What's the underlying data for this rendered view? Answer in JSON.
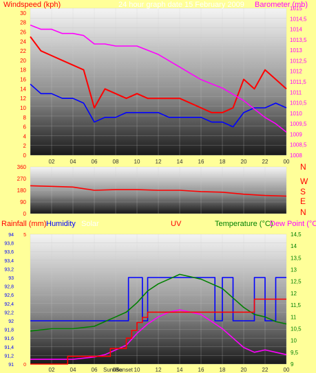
{
  "header": {
    "left_title": "Windspeed (kph)",
    "center_title": "24 hour graph  date  15 February 2009",
    "right_title": "Barometer (mb)"
  },
  "bottom_header": {
    "rainfall": "Rainfall (mm)",
    "humidity": "Humidity",
    "solar": "Solar",
    "uv": "UV",
    "temperature": "Temperature (°C)",
    "dewpoint": "Dew Point (°C)"
  },
  "colors": {
    "background": "#ffff99",
    "wind_avg": "#0000ff",
    "wind_gust": "#ff0000",
    "barometer": "#ff00ff",
    "winddir": "#ff0000",
    "humidity": "#0000ff",
    "temperature": "#008000",
    "dewpoint": "#ff00ff",
    "rainfall": "#ff0000",
    "solar": "#ffff00",
    "uv": "#008000"
  },
  "chart_data": [
    {
      "type": "line",
      "name": "wind-barometer",
      "x_ticks": [
        "02",
        "04",
        "06",
        "08",
        "10",
        "12",
        "14",
        "16",
        "18",
        "20",
        "22",
        "00"
      ],
      "y_left_ticks": [
        "0",
        "2",
        "4",
        "6",
        "8",
        "10",
        "12",
        "14",
        "16",
        "18",
        "20",
        "22",
        "24",
        "26",
        "28",
        "30"
      ],
      "y_left_range": [
        0,
        31
      ],
      "y_right_ticks": [
        "1008",
        "1008,5",
        "1009",
        "1009,5",
        "1010",
        "1010,5",
        "1011",
        "1011,5",
        "1012",
        "1012,5",
        "1013",
        "1013,5",
        "1014",
        "1014,5",
        "1015"
      ],
      "y_right_range": [
        1008,
        1015
      ],
      "x_range": [
        0,
        24
      ],
      "series": [
        {
          "name": "Gust",
          "axis": "left",
          "x": [
            0,
            1,
            2,
            3,
            4,
            5,
            6,
            7,
            8,
            9,
            10,
            11,
            12,
            13,
            14,
            15,
            16,
            17,
            18,
            19,
            20,
            21,
            22,
            23,
            24
          ],
          "y": [
            25,
            22,
            21,
            20,
            19,
            18,
            10,
            14,
            13,
            12,
            13,
            12,
            12,
            12,
            12,
            11,
            10,
            9,
            9,
            10,
            16,
            14,
            18,
            16,
            14
          ]
        },
        {
          "name": "Average",
          "axis": "left",
          "x": [
            0,
            1,
            2,
            3,
            4,
            5,
            6,
            7,
            8,
            9,
            10,
            11,
            12,
            13,
            14,
            15,
            16,
            17,
            18,
            19,
            20,
            21,
            22,
            23,
            24
          ],
          "y": [
            15,
            13,
            13,
            12,
            12,
            11,
            7,
            8,
            8,
            9,
            9,
            9,
            9,
            8,
            8,
            8,
            8,
            7,
            7,
            6,
            9,
            10,
            10,
            11,
            10
          ]
        },
        {
          "name": "Barometer",
          "axis": "right",
          "x": [
            0,
            1,
            2,
            3,
            4,
            5,
            6,
            7,
            8,
            9,
            10,
            11,
            12,
            13,
            14,
            15,
            16,
            17,
            18,
            19,
            20,
            21,
            22,
            23,
            24
          ],
          "y": [
            1014.2,
            1014.0,
            1014.0,
            1013.8,
            1013.8,
            1013.7,
            1013.3,
            1013.3,
            1013.2,
            1013.2,
            1013.2,
            1013.0,
            1012.8,
            1012.5,
            1012.2,
            1011.9,
            1011.6,
            1011.4,
            1011.2,
            1010.9,
            1010.6,
            1010.2,
            1009.8,
            1009.5,
            1009.1
          ]
        }
      ]
    },
    {
      "type": "line",
      "name": "wind-direction",
      "x_range": [
        0,
        24
      ],
      "y_ticks": [
        "0",
        "90",
        "180",
        "270",
        "360"
      ],
      "y_range": [
        0,
        360
      ],
      "compass_labels": [
        "N",
        "W",
        "S",
        "E",
        "N"
      ],
      "series": [
        {
          "name": "Direction",
          "x": [
            0,
            2,
            4,
            6,
            8,
            10,
            12,
            14,
            16,
            18,
            20,
            22,
            24
          ],
          "y": [
            215,
            210,
            205,
            180,
            185,
            185,
            180,
            180,
            170,
            165,
            150,
            140,
            135
          ]
        }
      ]
    },
    {
      "type": "line",
      "name": "rain-humidity-temp",
      "x_ticks": [
        "02",
        "04",
        "06",
        "08",
        "10",
        "12",
        "14",
        "16",
        "18",
        "20",
        "22",
        "00"
      ],
      "x_extra_labels": [
        "Sunrise",
        "Sunset"
      ],
      "x_range": [
        0,
        24
      ],
      "y_left_ticks": [
        "91",
        "91,2",
        "91,4",
        "91,6",
        "91,8",
        "92",
        "92,2",
        "92,4",
        "92,6",
        "92,8",
        "93",
        "93,2",
        "93,4",
        "93,6",
        "93,8",
        "94"
      ],
      "y_left_range": [
        91,
        94
      ],
      "y_right_ticks": [
        "9",
        "9,5",
        "10",
        "10,5",
        "11",
        "11,5",
        "12",
        "12,5",
        "13",
        "13,5",
        "14",
        "14,5"
      ],
      "y_right_range": [
        9,
        14.5
      ],
      "rain_ticks": [
        "0",
        "5"
      ],
      "series": [
        {
          "name": "Humidity",
          "axis": "left",
          "x": [
            0,
            6,
            7,
            8,
            9,
            9.2,
            10,
            10.5,
            11,
            11.5,
            12,
            14,
            16,
            17,
            17.3,
            18,
            19,
            20,
            21,
            22,
            23,
            24
          ],
          "y": [
            92,
            92,
            92,
            92,
            92,
            93,
            93,
            92,
            93,
            93,
            93,
            93,
            93,
            93,
            92,
            93,
            92,
            92,
            93,
            92,
            93,
            93
          ]
        },
        {
          "name": "Temperature",
          "axis": "right",
          "x": [
            0,
            2,
            4,
            6,
            7,
            8,
            9,
            10,
            11,
            12,
            13,
            14,
            15,
            16,
            17,
            18,
            19,
            20,
            21,
            22,
            23,
            24
          ],
          "y": [
            10.4,
            10.5,
            10.5,
            10.6,
            10.8,
            11.0,
            11.2,
            11.6,
            12.1,
            12.4,
            12.6,
            12.8,
            12.7,
            12.6,
            12.4,
            12.2,
            11.8,
            11.4,
            11.1,
            11.0,
            10.8,
            10.7
          ]
        },
        {
          "name": "Dew Point",
          "axis": "right",
          "x": [
            0,
            2,
            4,
            6,
            7,
            8,
            9,
            10,
            11,
            12,
            13,
            14,
            15,
            16,
            17,
            18,
            19,
            20,
            21,
            22,
            23,
            24
          ],
          "y": [
            9.2,
            9.2,
            9.2,
            9.3,
            9.4,
            9.6,
            9.8,
            10.3,
            10.7,
            11.0,
            11.2,
            11.3,
            11.2,
            11.1,
            10.8,
            10.5,
            10.1,
            9.7,
            9.5,
            9.6,
            9.5,
            9.4
          ]
        },
        {
          "name": "Rainfall",
          "axis": "rain",
          "x": [
            0,
            3.5,
            6,
            7.5,
            8.5,
            9,
            9.5,
            10,
            10.5,
            11,
            12,
            17,
            18,
            20,
            21,
            22,
            23,
            24
          ],
          "y": [
            0,
            0.3,
            0.3,
            0.6,
            0.6,
            1.0,
            1.3,
            1.6,
            1.8,
            2.0,
            2.0,
            2.0,
            2.0,
            2.0,
            2.5,
            2.5,
            2.5,
            2.5
          ]
        }
      ]
    }
  ]
}
